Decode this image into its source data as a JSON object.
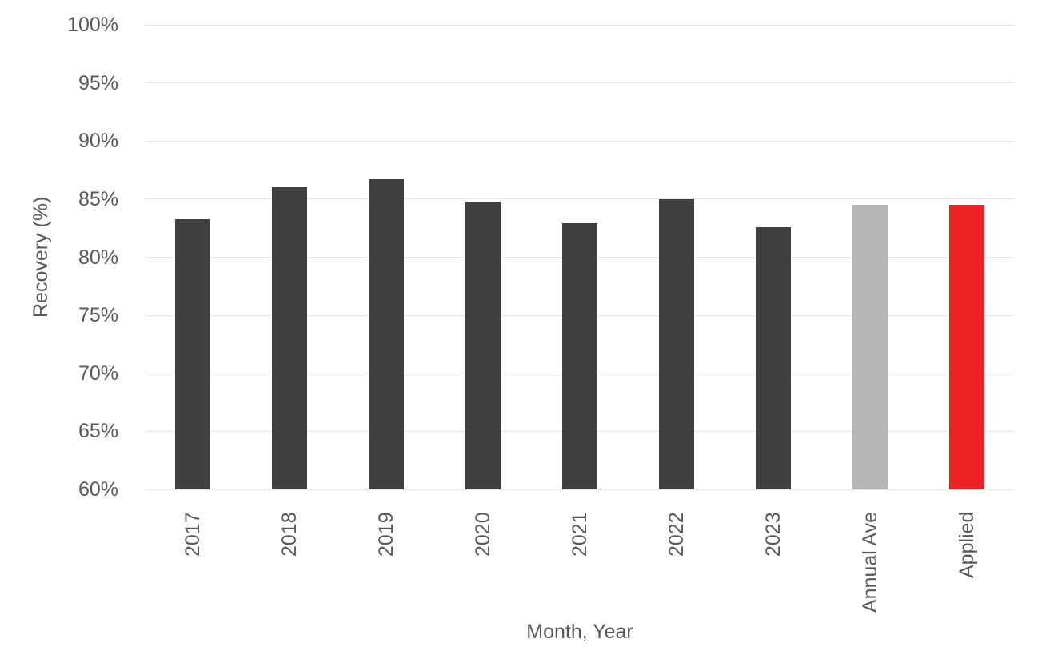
{
  "chart_data": {
    "type": "bar",
    "title": "",
    "xlabel": "Month, Year",
    "ylabel": "Recovery (%)",
    "categories": [
      "2017",
      "2018",
      "2019",
      "2020",
      "2021",
      "2022",
      "2023",
      "Annual Ave",
      "Applied"
    ],
    "values": [
      83.3,
      86.0,
      86.7,
      84.8,
      82.9,
      85.0,
      82.6,
      84.5,
      84.5
    ],
    "bar_colors": [
      "#404040",
      "#404040",
      "#404040",
      "#404040",
      "#404040",
      "#404040",
      "#404040",
      "#b6b6b6",
      "#ed2024"
    ],
    "ylim": [
      60,
      100
    ],
    "ytick_values": [
      60,
      65,
      70,
      75,
      80,
      85,
      90,
      95,
      100
    ],
    "ytick_labels": [
      "60%",
      "65%",
      "70%",
      "75%",
      "80%",
      "85%",
      "90%",
      "95%",
      "100%"
    ],
    "grid": "horizontal",
    "legend": "none",
    "text_color": "#595959",
    "gridline_color": "#e6e6e6",
    "background": "#ffffff"
  }
}
